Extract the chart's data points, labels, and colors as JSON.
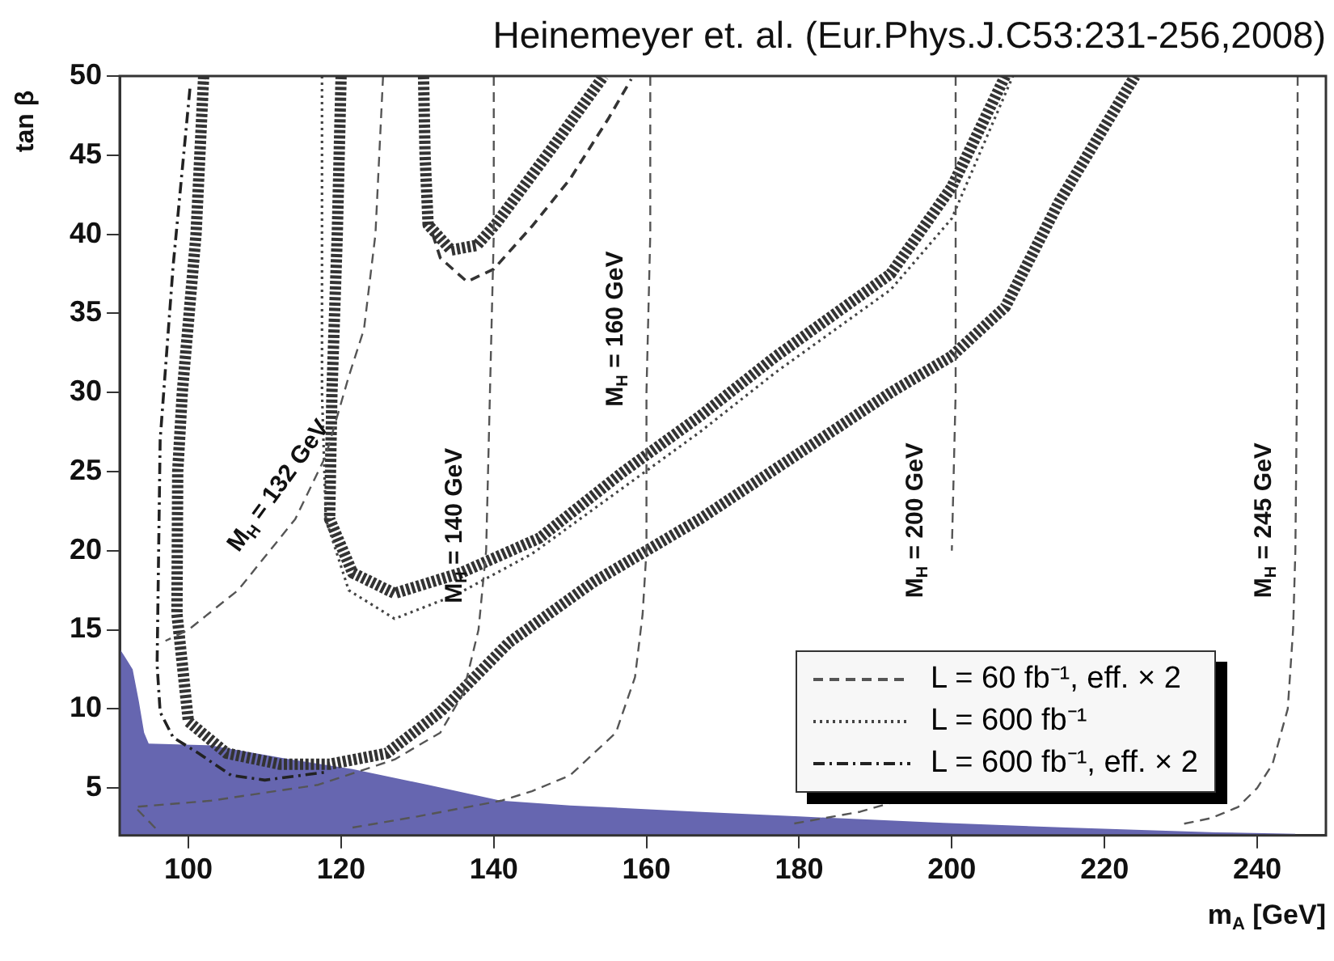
{
  "chart_data": {
    "type": "line",
    "title": "Heinemeyer et. al. (Eur.Phys.J.C53:231-256,2008)",
    "xlabel": "m$_{A}$ [GeV]",
    "ylabel": "tan β",
    "xlim": [
      91,
      249
    ],
    "ylim": [
      2,
      50
    ],
    "xticks": [
      100,
      120,
      140,
      160,
      180,
      200,
      220,
      240
    ],
    "yticks": [
      5,
      10,
      15,
      20,
      25,
      30,
      35,
      40,
      45,
      50
    ],
    "grid": false,
    "legend": "bottom right",
    "marker": "none",
    "annotations": [
      "M$_{H}$ = 132 GeV",
      "M$_{H}$ = 140 GeV",
      "M$_{H}$ = 160 GeV",
      "M$_{H}$ = 200 GeV",
      "M$_{H}$ = 245 GeV"
    ],
    "series": [
      {
        "type": "area",
        "color": "#6666b0",
        "x": [
          91,
          91.8,
          92.7,
          93.5,
          94.2,
          94.8,
          102.8,
          113.5,
          121.5,
          131.4,
          140.9,
          150,
          166.7,
          180,
          198.9,
          215,
          234.6,
          245
        ],
        "values": [
          13.8,
          13.2,
          12.5,
          10.5,
          8.5,
          7.8,
          7.7,
          6.8,
          6.2,
          5.2,
          4.2,
          3.9,
          3.5,
          3.2,
          2.8,
          2.5,
          2.2,
          2.1
        ]
      },
      {
        "name": "L = 60 fb⁻¹, eff. × 2",
        "color": "#555555",
        "line_style": "dashed",
        "x": [
          125.5,
          124.5,
          123,
          121,
          118,
          114,
          106.5,
          100,
          97
        ],
        "values": [
          50,
          40,
          34,
          31,
          26,
          22,
          17.5,
          15,
          14.3
        ]
      },
      {
        "color": "#555555",
        "line_style": "dashed",
        "x": [
          140,
          140,
          139.5,
          139,
          138,
          136,
          133,
          127,
          117,
          103,
          93,
          96
        ],
        "values": [
          50,
          40,
          30,
          20,
          15,
          11,
          8.5,
          6.8,
          5.2,
          4.2,
          3.8,
          2.3
        ]
      },
      {
        "color": "#555555",
        "line_style": "dashed",
        "x": [
          160.5,
          160.5,
          160,
          160,
          159.5,
          158.5,
          156,
          150,
          145,
          141,
          130,
          121.5
        ],
        "values": [
          50,
          40,
          30,
          20,
          16,
          12,
          8.5,
          5.8,
          4.8,
          4.2,
          3.2,
          2.5
        ]
      },
      {
        "color": "#555555",
        "line_style": "dashed",
        "x": [
          200.5,
          200.5,
          200,
          199.5,
          199,
          197,
          193,
          188,
          178.7
        ],
        "values": [
          50,
          30,
          20,
          null,
          null,
          null,
          4.2,
          3.5,
          2.7
        ]
      },
      {
        "color": "#555555",
        "line_style": "dashed",
        "x": [
          245.3,
          245.2,
          245,
          244.7,
          244,
          242,
          240,
          237.5,
          234,
          230
        ],
        "values": [
          50,
          30,
          20,
          15,
          10,
          6.5,
          5,
          3.8,
          3.1,
          2.7
        ]
      },
      {
        "color": "#333333",
        "line_style": "dashed",
        "x": [
          132,
          133,
          136.5,
          140,
          145,
          150,
          155,
          158
        ],
        "values": [
          40,
          38.5,
          37,
          37.8,
          40.5,
          43.5,
          47.3,
          49.8
        ]
      },
      {
        "name": "L = 600 fb⁻¹",
        "color": "#444444",
        "line_style": "dotted",
        "x": [
          117.5,
          117.5,
          118,
          121,
          127,
          135,
          145,
          157,
          167,
          177,
          192,
          200,
          208
        ],
        "values": [
          50,
          30,
          22,
          17.5,
          15.7,
          17.2,
          19.8,
          24,
          27.5,
          31.3,
          36.5,
          41,
          50
        ]
      },
      {
        "name": "L = 600 fb⁻¹, eff. × 2",
        "color": "#222222",
        "line_style": "dashdot",
        "x": [
          100.2,
          98,
          96.3,
          95.9,
          96.3,
          98,
          101.3,
          105.6,
          110,
          118
        ],
        "values": [
          49.2,
          38,
          27,
          12.8,
          9.8,
          8.2,
          7.2,
          5.8,
          5.5,
          6
        ]
      },
      {
        "color": "#333333",
        "line_style": "dashed",
        "x": [
          102,
          101,
          99.2,
          98.6,
          98.5,
          100,
          105,
          112,
          118.5,
          126,
          133,
          142,
          153,
          167,
          182,
          192,
          200,
          207,
          214,
          224
        ],
        "values": [
          50,
          40,
          30,
          25,
          16,
          9.2,
          7.2,
          6.5,
          6.5,
          7.2,
          9.8,
          14.2,
          18,
          22,
          26.8,
          30,
          32.3,
          35.4,
          42,
          50
        ]
      },
      {
        "color": "#333333",
        "line_style": "dashed",
        "x": [
          120,
          119.5,
          118.8,
          118.5,
          121.5,
          127,
          135.7,
          146,
          157,
          167,
          177,
          192,
          200,
          207
        ],
        "values": [
          50,
          40,
          30,
          22,
          18.6,
          17.3,
          18.6,
          20.8,
          25,
          28.5,
          32.3,
          37.5,
          43,
          50
        ]
      },
      {
        "color": "#333333",
        "line_style": "dashed",
        "x": [
          130.8,
          131,
          131.4,
          134.4,
          137.8,
          140.2,
          147.7,
          154.4
        ],
        "values": [
          50,
          45,
          40.6,
          39,
          39.3,
          40.6,
          45.5,
          50
        ]
      }
    ]
  }
}
